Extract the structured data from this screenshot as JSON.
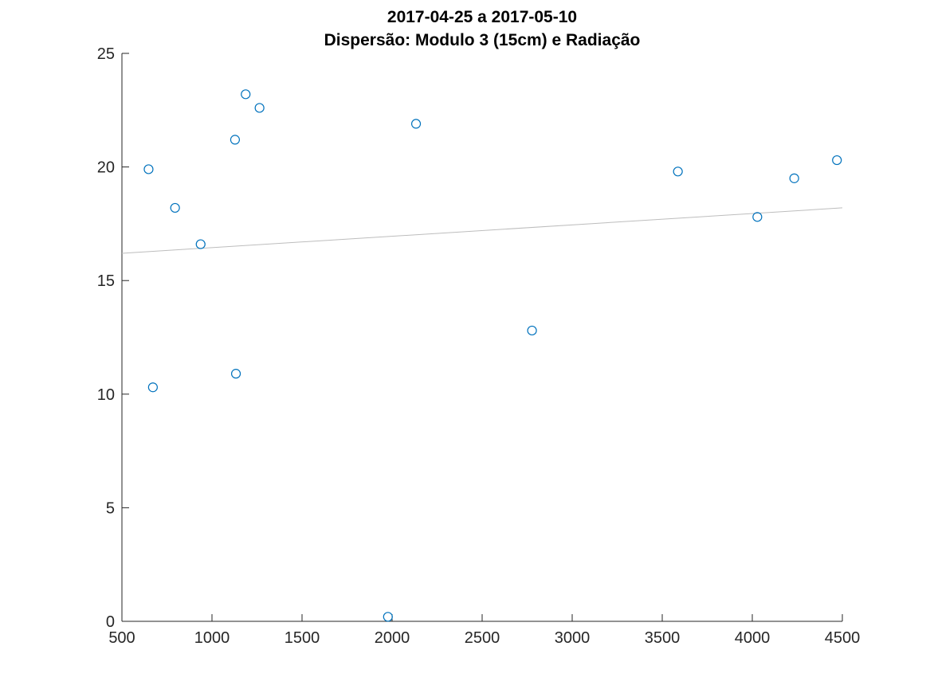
{
  "chart_data": {
    "type": "scatter",
    "title": [
      "2017-04-25 a 2017-05-10",
      "Dispersão: Modulo 3 (15cm) e Radiação"
    ],
    "xlabel": "",
    "ylabel": "",
    "xlim": [
      500,
      4500
    ],
    "ylim": [
      0,
      25
    ],
    "xticks": [
      500,
      1000,
      1500,
      2000,
      2500,
      3000,
      3500,
      4000,
      4500
    ],
    "yticks": [
      0,
      5,
      10,
      15,
      20,
      25
    ],
    "grid": false,
    "points": [
      {
        "x": 648,
        "y": 19.9
      },
      {
        "x": 672,
        "y": 10.3
      },
      {
        "x": 795,
        "y": 18.2
      },
      {
        "x": 937,
        "y": 16.6
      },
      {
        "x": 1128,
        "y": 21.2
      },
      {
        "x": 1133,
        "y": 10.9
      },
      {
        "x": 1187,
        "y": 23.2
      },
      {
        "x": 1264,
        "y": 22.6
      },
      {
        "x": 1977,
        "y": 0.2
      },
      {
        "x": 2133,
        "y": 21.9
      },
      {
        "x": 2777,
        "y": 12.8
      },
      {
        "x": 3587,
        "y": 19.8
      },
      {
        "x": 4028,
        "y": 17.8
      },
      {
        "x": 4233,
        "y": 19.5
      },
      {
        "x": 4470,
        "y": 20.3
      }
    ],
    "trendline": {
      "x": [
        500,
        4500
      ],
      "y": [
        16.2,
        18.2
      ]
    },
    "colors": {
      "marker": "#0072BD",
      "trendline": "#bdbdbd"
    }
  }
}
